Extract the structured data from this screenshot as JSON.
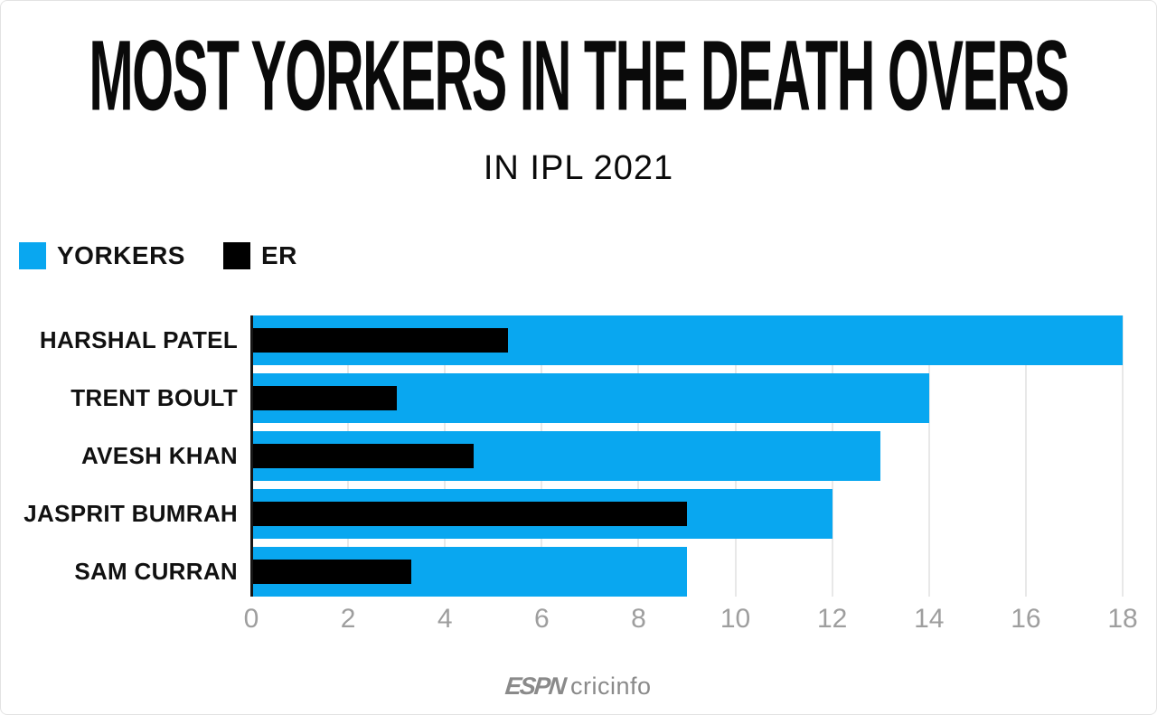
{
  "title": "MOST YORKERS IN THE DEATH OVERS",
  "subtitle": "IN IPL 2021",
  "legend": [
    {
      "label": "YORKERS",
      "color": "#09a7f0"
    },
    {
      "label": "ER",
      "color": "#000000"
    }
  ],
  "footer": {
    "espn": "ESPN",
    "cricinfo": "cricinfo"
  },
  "chart_data": {
    "type": "bar",
    "orientation": "horizontal",
    "title": "MOST YORKERS IN THE DEATH OVERS",
    "subtitle": "IN IPL 2021",
    "categories": [
      "HARSHAL PATEL",
      "TRENT BOULT",
      "AVESH KHAN",
      "JASPRIT BUMRAH",
      "SAM CURRAN"
    ],
    "series": [
      {
        "name": "YORKERS",
        "color": "#09a7f0",
        "values": [
          18,
          14,
          13,
          12,
          9
        ]
      },
      {
        "name": "ER",
        "color": "#000000",
        "values": [
          5.3,
          3.0,
          4.6,
          9.0,
          3.3
        ]
      }
    ],
    "x_ticks": [
      0,
      2,
      4,
      6,
      8,
      10,
      12,
      14,
      16,
      18
    ],
    "xlim": [
      0,
      18
    ],
    "grid": "vertical",
    "legend_position": "top-left",
    "xlabel": "",
    "ylabel": ""
  }
}
